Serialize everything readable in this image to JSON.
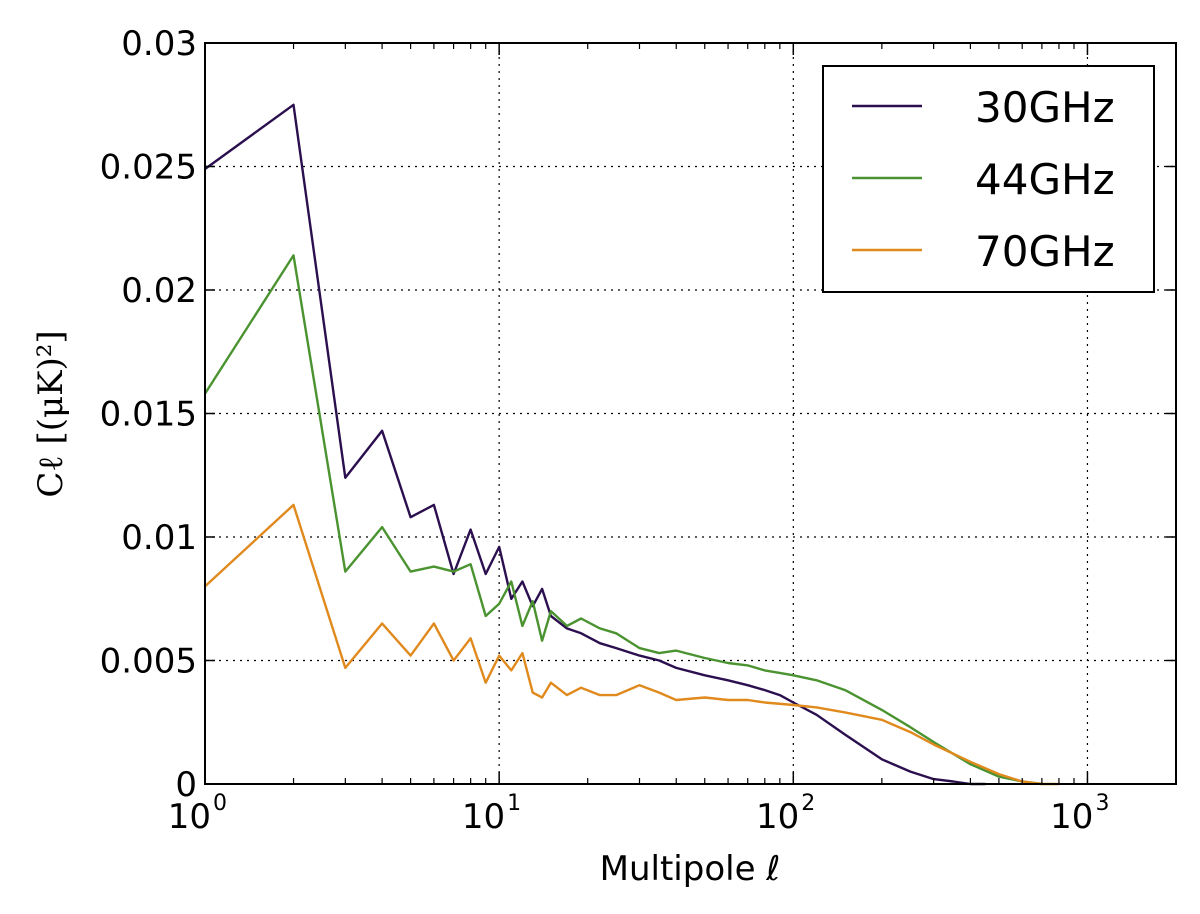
{
  "chart_data": {
    "type": "line",
    "title": "",
    "xlabel": "Multipole ℓ",
    "ylabel": "Cℓ [(μK)²]",
    "x_scale": "log",
    "xlim": [
      1,
      2000
    ],
    "ylim": [
      0,
      0.03
    ],
    "grid": true,
    "legend_position": "top-right",
    "x_ticks": [
      {
        "value": 1,
        "base": "10",
        "exp": "0"
      },
      {
        "value": 10,
        "base": "10",
        "exp": "1"
      },
      {
        "value": 100,
        "base": "10",
        "exp": "2"
      },
      {
        "value": 1000,
        "base": "10",
        "exp": "3"
      }
    ],
    "y_ticks": [
      {
        "value": 0,
        "label": "0"
      },
      {
        "value": 0.005,
        "label": "0.005"
      },
      {
        "value": 0.01,
        "label": "0.01"
      },
      {
        "value": 0.015,
        "label": "0.015"
      },
      {
        "value": 0.02,
        "label": "0.02"
      },
      {
        "value": 0.025,
        "label": "0.025"
      },
      {
        "value": 0.03,
        "label": "0.03"
      }
    ],
    "series": [
      {
        "name": "30GHz",
        "color": "#2b0f4f",
        "x": [
          1,
          2,
          3,
          4,
          5,
          6,
          7,
          8,
          9,
          10,
          11,
          12,
          13,
          14,
          15,
          17,
          19,
          22,
          25,
          30,
          35,
          40,
          50,
          60,
          70,
          80,
          90,
          100,
          120,
          150,
          200,
          250,
          300,
          350,
          400,
          450
        ],
        "y": [
          0.0249,
          0.0275,
          0.0124,
          0.0143,
          0.0108,
          0.0113,
          0.0085,
          0.0103,
          0.0085,
          0.0096,
          0.0075,
          0.0082,
          0.0072,
          0.0079,
          0.0068,
          0.0063,
          0.0061,
          0.0057,
          0.0055,
          0.0052,
          0.005,
          0.0047,
          0.0044,
          0.0042,
          0.004,
          0.0038,
          0.0036,
          0.0033,
          0.0028,
          0.002,
          0.001,
          0.0005,
          0.0002,
          0.0001,
          0.0,
          0.0
        ]
      },
      {
        "name": "44GHz",
        "color": "#4a9330",
        "x": [
          1,
          2,
          3,
          4,
          5,
          6,
          7,
          8,
          9,
          10,
          11,
          12,
          13,
          14,
          15,
          17,
          19,
          22,
          25,
          30,
          35,
          40,
          50,
          60,
          70,
          80,
          90,
          100,
          120,
          150,
          200,
          250,
          300,
          400,
          500,
          600,
          700
        ],
        "y": [
          0.0158,
          0.0214,
          0.0086,
          0.0104,
          0.0086,
          0.0088,
          0.0086,
          0.0089,
          0.0068,
          0.0073,
          0.0082,
          0.0064,
          0.0074,
          0.0058,
          0.007,
          0.0064,
          0.0067,
          0.0063,
          0.0061,
          0.0055,
          0.0053,
          0.0054,
          0.0051,
          0.0049,
          0.0048,
          0.0046,
          0.0045,
          0.0044,
          0.0042,
          0.0038,
          0.003,
          0.0023,
          0.0017,
          0.0008,
          0.0003,
          0.0001,
          0.0
        ]
      },
      {
        "name": "70GHz",
        "color": "#e08a1e",
        "x": [
          1,
          2,
          3,
          4,
          5,
          6,
          7,
          8,
          9,
          10,
          11,
          12,
          13,
          14,
          15,
          17,
          19,
          22,
          25,
          30,
          35,
          40,
          50,
          60,
          70,
          80,
          100,
          120,
          150,
          200,
          250,
          300,
          400,
          500,
          600,
          700,
          800
        ],
        "y": [
          0.008,
          0.0113,
          0.0047,
          0.0065,
          0.0052,
          0.0065,
          0.005,
          0.0059,
          0.0041,
          0.0052,
          0.0046,
          0.0053,
          0.0037,
          0.0035,
          0.0041,
          0.0036,
          0.0039,
          0.0036,
          0.0036,
          0.004,
          0.0037,
          0.0034,
          0.0035,
          0.0034,
          0.0034,
          0.0033,
          0.0032,
          0.0031,
          0.0029,
          0.0026,
          0.0021,
          0.0016,
          0.0009,
          0.0004,
          0.0001,
          0.0,
          0.0
        ]
      }
    ]
  }
}
